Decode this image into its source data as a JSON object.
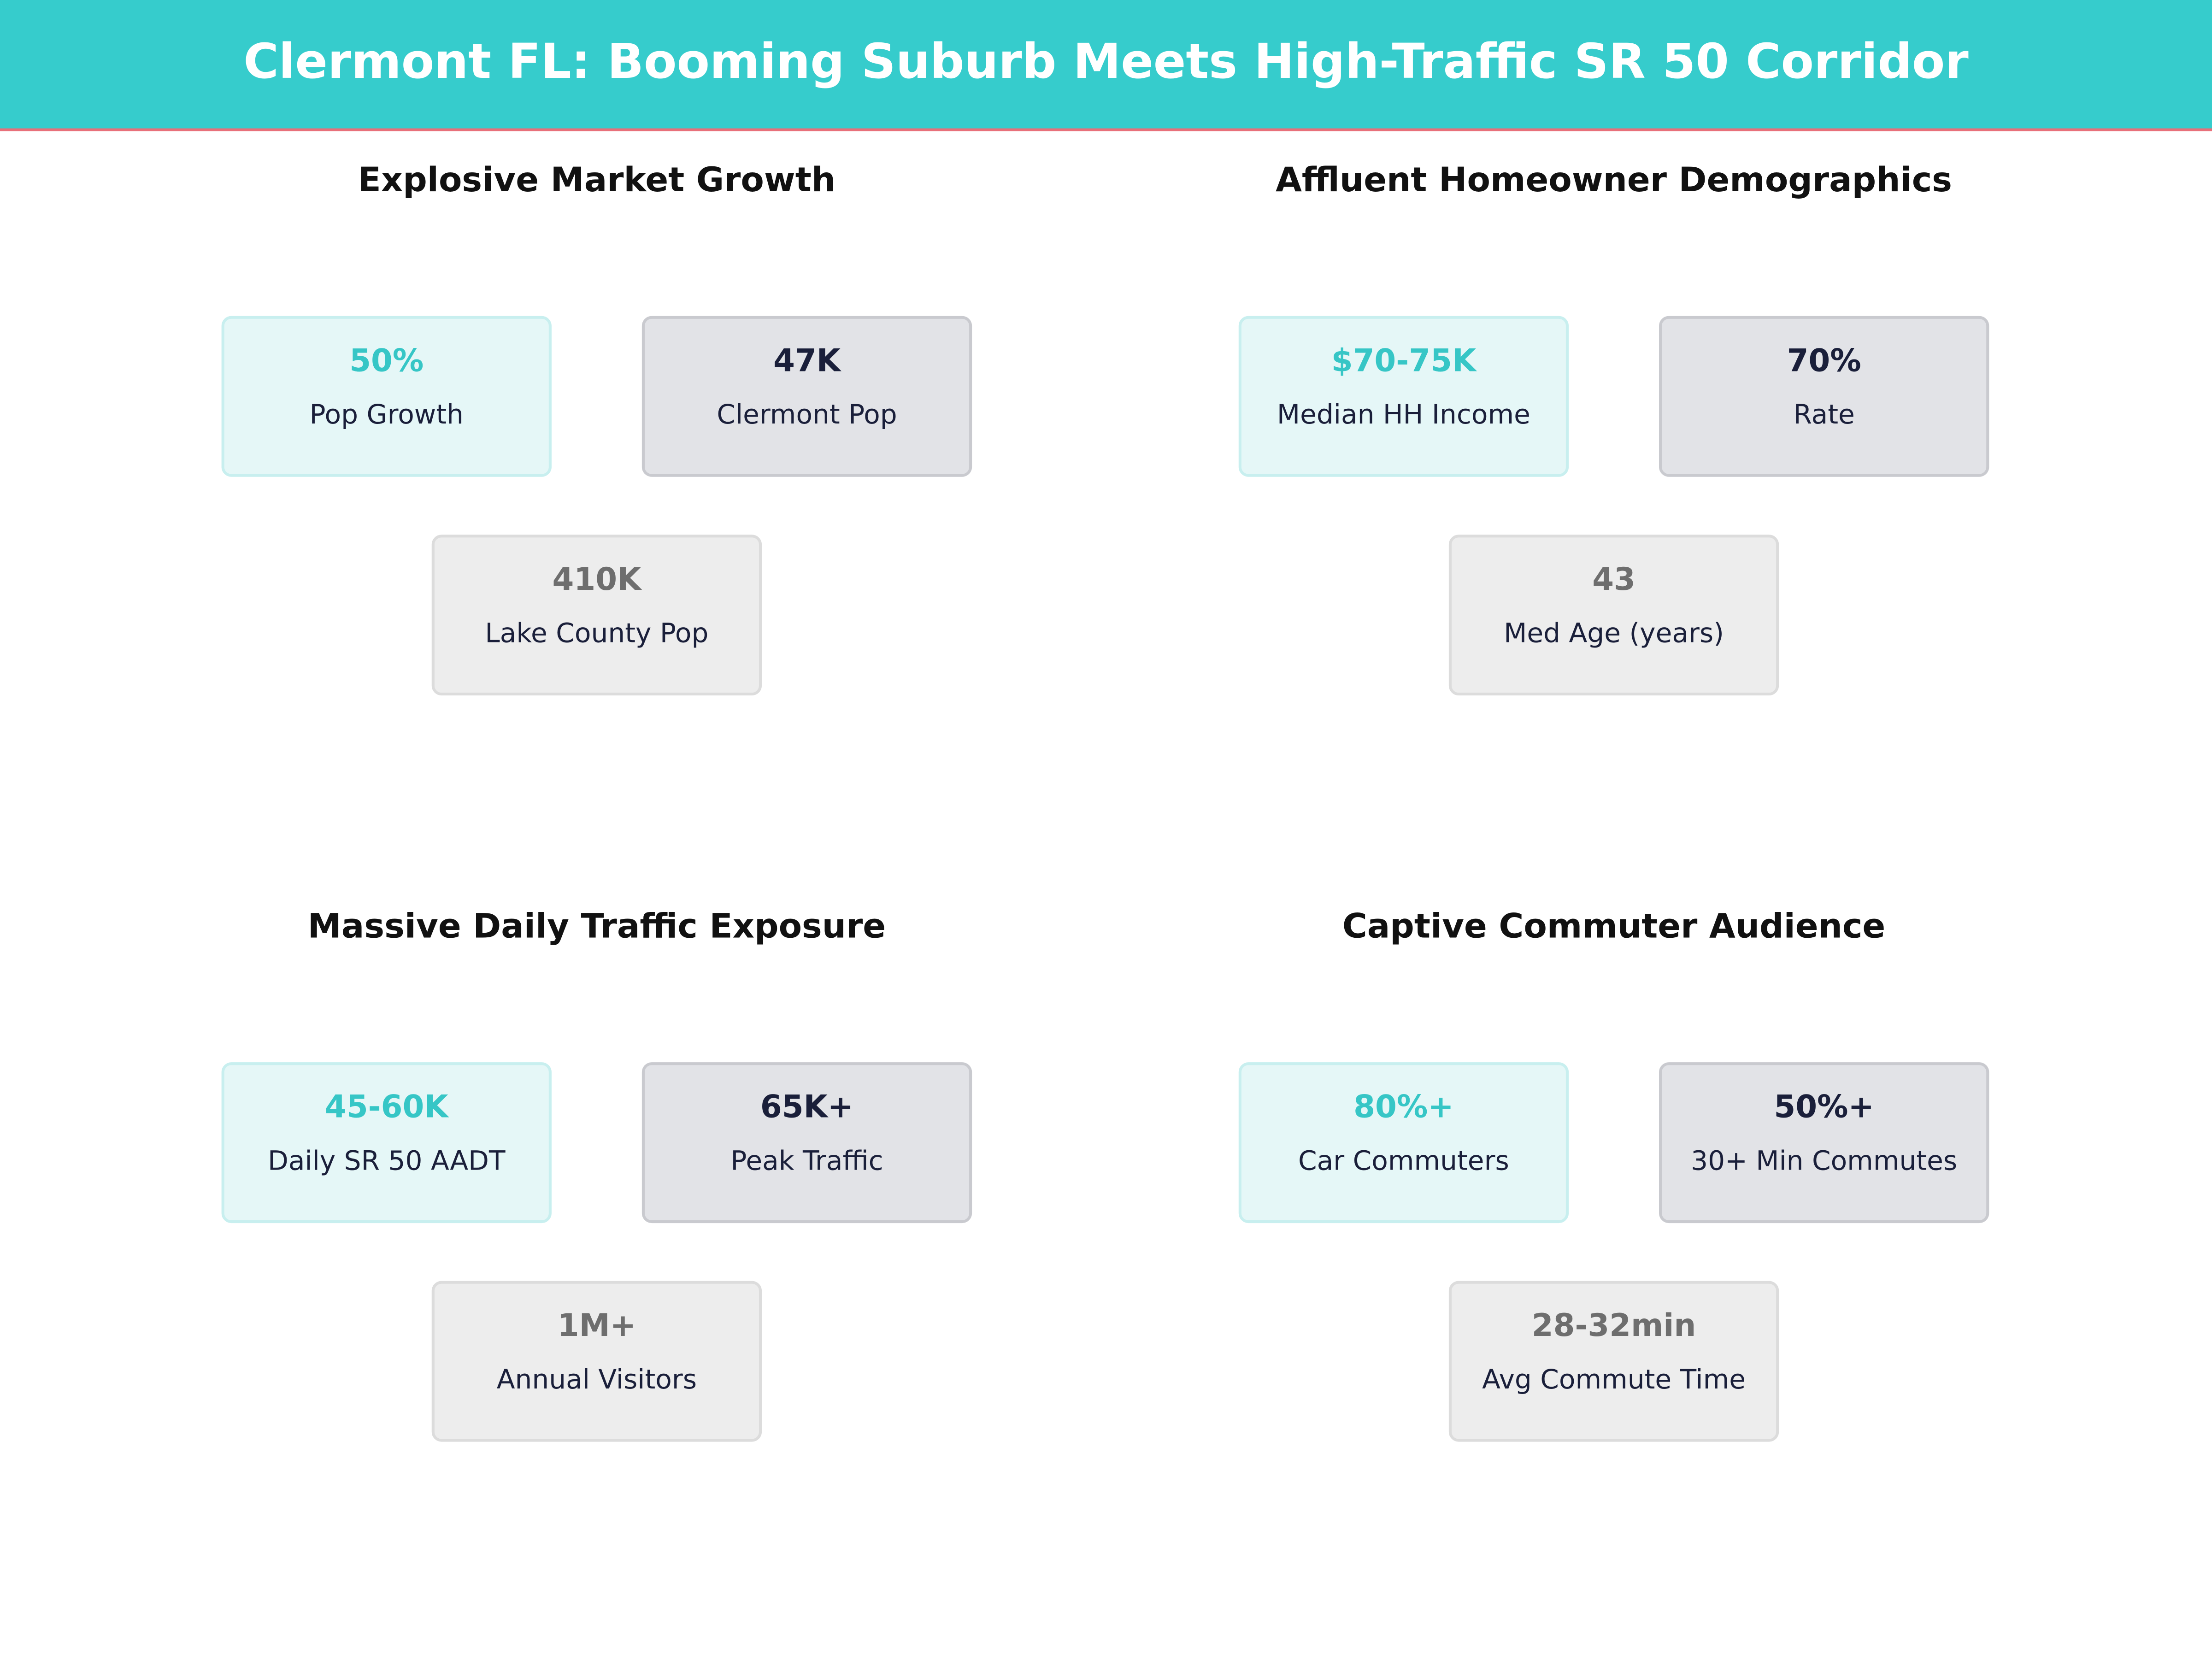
{
  "header": {
    "title": "Clermont FL: Booming Suburb Meets High-Traffic SR 50 Corridor"
  },
  "panels": [
    {
      "title": "Explosive Market Growth",
      "cards": [
        {
          "value": "50%",
          "label": "Pop Growth"
        },
        {
          "value": "47K",
          "label": "Clermont Pop"
        },
        {
          "value": "410K",
          "label": "Lake County Pop"
        }
      ]
    },
    {
      "title": "Affluent Homeowner Demographics",
      "cards": [
        {
          "value": "$70-75K",
          "label": "Median HH Income"
        },
        {
          "value": "70%",
          "label": "Rate"
        },
        {
          "value": "43",
          "label": "Med Age (years)"
        }
      ]
    },
    {
      "title": "Massive Daily Traffic Exposure",
      "cards": [
        {
          "value": "45-60K",
          "label": "Daily SR 50 AADT"
        },
        {
          "value": "65K+",
          "label": "Peak Traffic"
        },
        {
          "value": "1M+",
          "label": "Annual Visitors"
        }
      ]
    },
    {
      "title": "Captive Commuter Audience",
      "cards": [
        {
          "value": "80%+",
          "label": "Car Commuters"
        },
        {
          "value": "50%+",
          "label": "30+ Min Commutes"
        },
        {
          "value": "28-32min",
          "label": "Avg Commute Time"
        }
      ]
    }
  ]
}
